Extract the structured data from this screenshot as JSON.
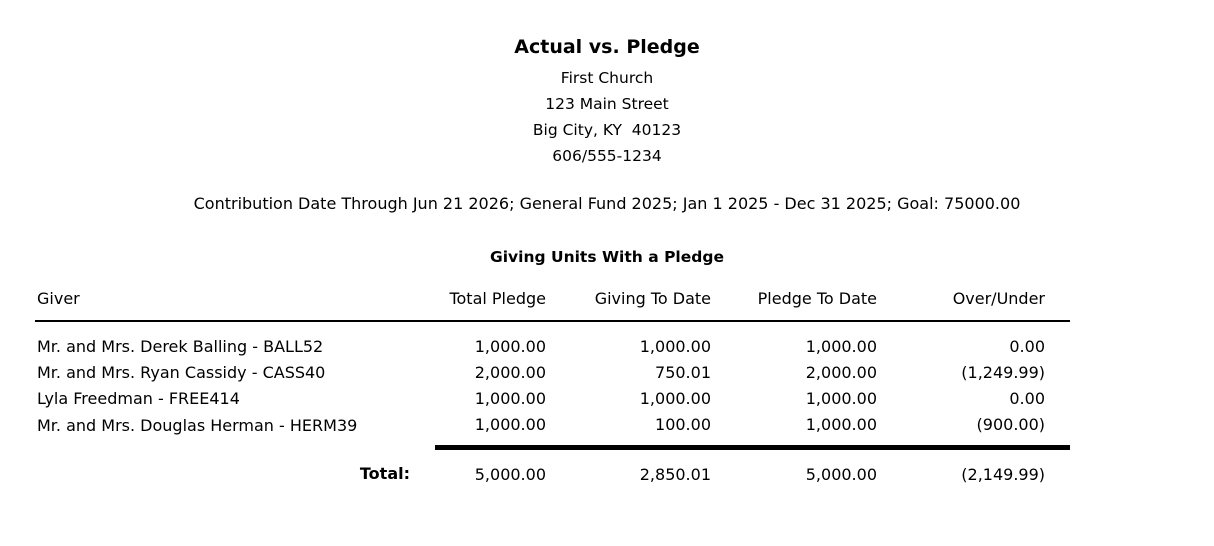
{
  "report": {
    "title": "Actual vs. Pledge",
    "org_name": "First Church",
    "address_line1": "123 Main Street",
    "address_line2": "Big City, KY  40123",
    "phone": "606/555-1234",
    "criteria": "Contribution Date Through Jun 21 2026; General Fund 2025; Jan 1 2025 - Dec 31 2025; Goal: 75000.00",
    "section_title": "Giving Units With a Pledge"
  },
  "table": {
    "columns": [
      "Giver",
      "Total Pledge",
      "Giving To Date",
      "Pledge To Date",
      "Over/Under"
    ],
    "rows": [
      {
        "giver": "Mr. and Mrs. Derek Balling - BALL52",
        "total_pledge": "1,000.00",
        "giving_to_date": "1,000.00",
        "pledge_to_date": "1,000.00",
        "over_under": "0.00"
      },
      {
        "giver": "Mr. and Mrs. Ryan Cassidy - CASS40",
        "total_pledge": "2,000.00",
        "giving_to_date": "750.01",
        "pledge_to_date": "2,000.00",
        "over_under": "(1,249.99)"
      },
      {
        "giver": "Lyla Freedman - FREE414",
        "total_pledge": "1,000.00",
        "giving_to_date": "1,000.00",
        "pledge_to_date": "1,000.00",
        "over_under": "0.00"
      },
      {
        "giver": "Mr. and Mrs. Douglas Herman - HERM39",
        "total_pledge": "1,000.00",
        "giving_to_date": "100.00",
        "pledge_to_date": "1,000.00",
        "over_under": "(900.00)"
      }
    ],
    "total": {
      "label": "Total:",
      "total_pledge": "5,000.00",
      "giving_to_date": "2,850.01",
      "pledge_to_date": "5,000.00",
      "over_under": "(2,149.99)"
    }
  }
}
